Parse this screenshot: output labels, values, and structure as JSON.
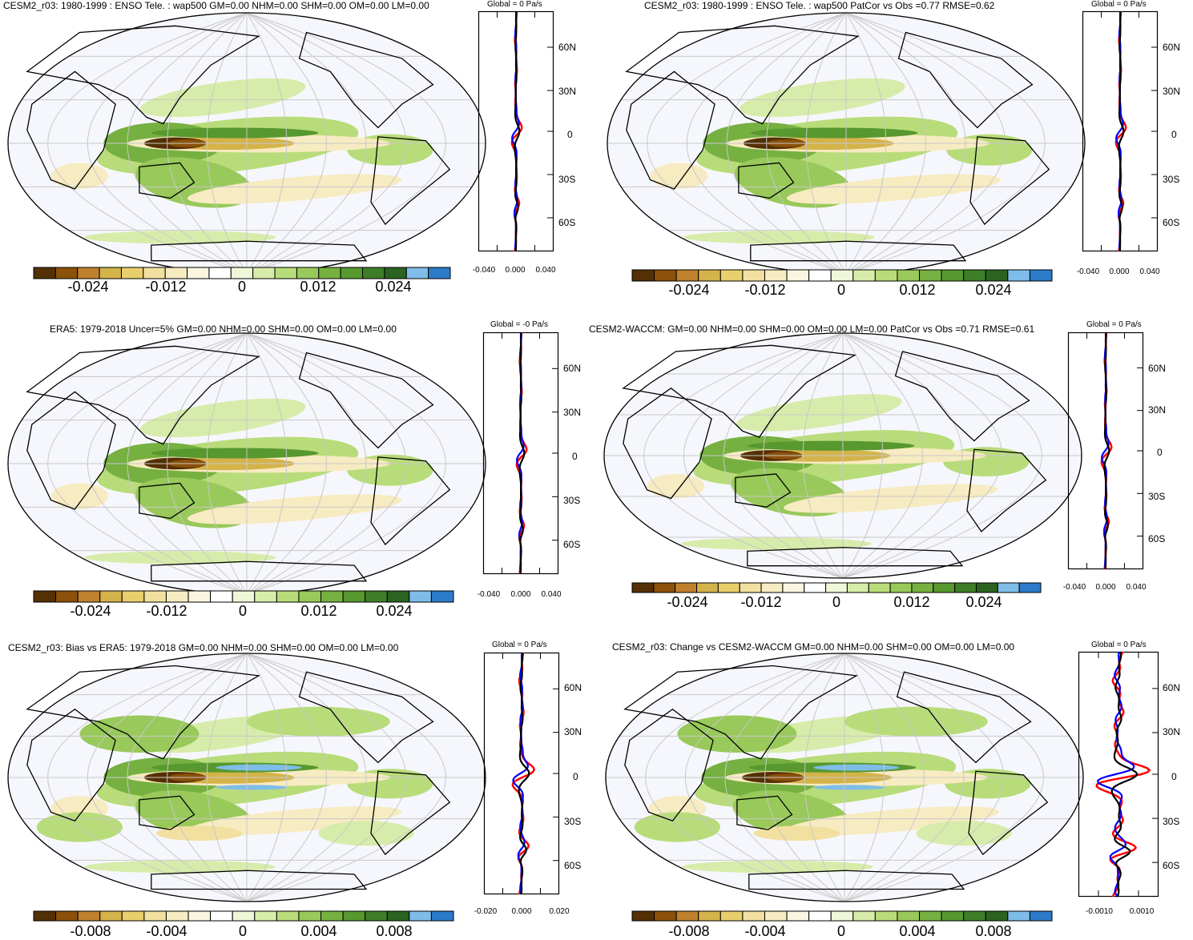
{
  "colors": {
    "palette": [
      "#543005",
      "#8c510a",
      "#bf812d",
      "#d4b34a",
      "#e8cf6c",
      "#f2e0a0",
      "#f7ebc2",
      "#faf5e0",
      "#ffffff",
      "#eff7d8",
      "#d7ecaa",
      "#b8dc7a",
      "#98c95a",
      "#76b041",
      "#57982f",
      "#3e7e28",
      "#2b6320",
      "#7fbde8",
      "#2c7bc9"
    ],
    "ocean": "#f6f7fc",
    "grid": "#c8c8c8",
    "red": "#ff0000",
    "blue": "#0000ff",
    "black": "#000000"
  },
  "panels": [
    {
      "title": "CESM2_r03: 1980-1999 : ENSO Tele. : wap500 GM=0.00 NHM=0.00 SHM=0.00 OM=0.00 LM=0.00",
      "zonal_title": "Global = 0 Pa/s",
      "cbar_labels": [
        "-0.024",
        "-0.012",
        "0",
        "0.012",
        "0.024"
      ],
      "zonal_xticks": [
        "-0.040",
        "0.000",
        "0.040"
      ],
      "lat_labels": [
        "60N",
        "30N",
        "0",
        "30S",
        "60S"
      ],
      "amp": 0.6
    },
    {
      "title": "CESM2_r03: 1980-1999 : ENSO Tele. : wap500 PatCor vs Obs =0.77 RMSE=0.62",
      "zonal_title": "Global = 0 Pa/s",
      "cbar_labels": [
        "-0.024",
        "-0.012",
        "0",
        "0.012",
        "0.024"
      ],
      "zonal_xticks": [
        "-0.040",
        "0.000",
        "0.040"
      ],
      "lat_labels": [
        "60N",
        "30N",
        "0",
        "30S",
        "60S"
      ],
      "amp": 0.6
    },
    {
      "title": "ERA5: 1979-2018 Uncer=5% GM=0.00 NHM=0.00 SHM=0.00 OM=0.00 LM=0.00",
      "zonal_title": "Global = -0 Pa/s",
      "cbar_labels": [
        "-0.024",
        "-0.012",
        "0",
        "0.012",
        "0.024"
      ],
      "zonal_xticks": [
        "-0.040",
        "0.000",
        "0.040"
      ],
      "lat_labels": [
        "60N",
        "30N",
        "0",
        "30S",
        "60S"
      ],
      "amp": 0.6
    },
    {
      "title": "CESM2-WACCM: GM=0.00 NHM=0.00 SHM=0.00 OM=0.00 LM=0.00 PatCor vs Obs =0.71 RMSE=0.61",
      "zonal_title": "Global = 0 Pa/s",
      "cbar_labels": [
        "-0.024",
        "-0.012",
        "0",
        "0.012",
        "0.024"
      ],
      "zonal_xticks": [
        "-0.040",
        "0.000",
        "0.040"
      ],
      "lat_labels": [
        "60N",
        "30N",
        "0",
        "30S",
        "60S"
      ],
      "amp": 0.6
    },
    {
      "title": "CESM2_r03: Bias vs ERA5: 1979-2018 GM=0.00 NHM=0.00 SHM=0.00 OM=0.00 LM=0.00",
      "zonal_title": "Global = 0 Pa/s",
      "cbar_labels": [
        "-0.008",
        "-0.004",
        "0",
        "0.004",
        "0.008"
      ],
      "zonal_xticks": [
        "-0.020",
        "0.000",
        "0.020"
      ],
      "lat_labels": [
        "60N",
        "30N",
        "0",
        "30S",
        "60S"
      ],
      "amp": 1.3
    },
    {
      "title": "CESM2_r03: Change vs CESM2-WACCM GM=0.00 NHM=0.00 SHM=0.00 OM=0.00 LM=0.00",
      "zonal_title": "Global = 0 Pa/s",
      "cbar_labels": [
        "-0.008",
        "-0.004",
        "0",
        "0.004",
        "0.008"
      ],
      "zonal_xticks": [
        "-0.0010",
        "0.0010"
      ],
      "lat_labels": [
        "60N",
        "30N",
        "0",
        "30S",
        "60S"
      ],
      "amp": 3.2
    }
  ]
}
